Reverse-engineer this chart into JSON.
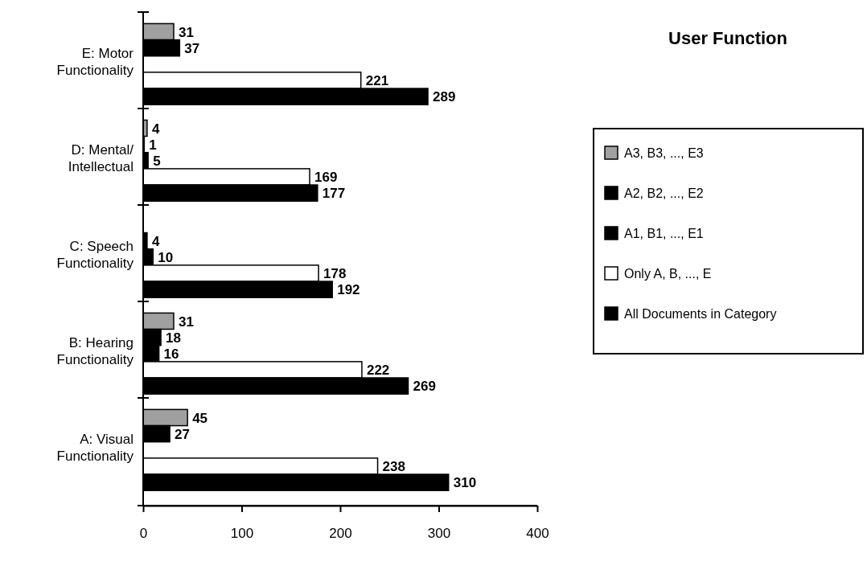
{
  "chart_data": {
    "type": "bar",
    "orientation": "horizontal",
    "title": "User Function",
    "categories": [
      "E: Motor Functionality",
      "D: Mental/ Intellectual",
      "C: Speech Functionality",
      "B: Hearing Functionality",
      "A: Visual Functionality"
    ],
    "series": [
      {
        "name": "A3, B3, ..., E3",
        "color": "#a0a0a0",
        "values": [
          31,
          4,
          null,
          31,
          45
        ]
      },
      {
        "name": "A2, B2, ..., E2",
        "color": "#000000",
        "values": [
          37,
          1,
          4,
          18,
          27
        ]
      },
      {
        "name": "A1, B1, ..., E1",
        "color": "#000000",
        "values": [
          null,
          5,
          10,
          16,
          null
        ]
      },
      {
        "name": "Only A, B, ..., E",
        "color": "#ffffff",
        "values": [
          221,
          169,
          178,
          222,
          238
        ]
      },
      {
        "name": "All Documents in Category",
        "color": "#000000",
        "values": [
          289,
          177,
          192,
          269,
          310
        ]
      }
    ],
    "xlim": [
      0,
      400
    ],
    "xticks": [
      0,
      100,
      200,
      300,
      400
    ],
    "data_labels": true,
    "legend": "right",
    "grid": false
  }
}
